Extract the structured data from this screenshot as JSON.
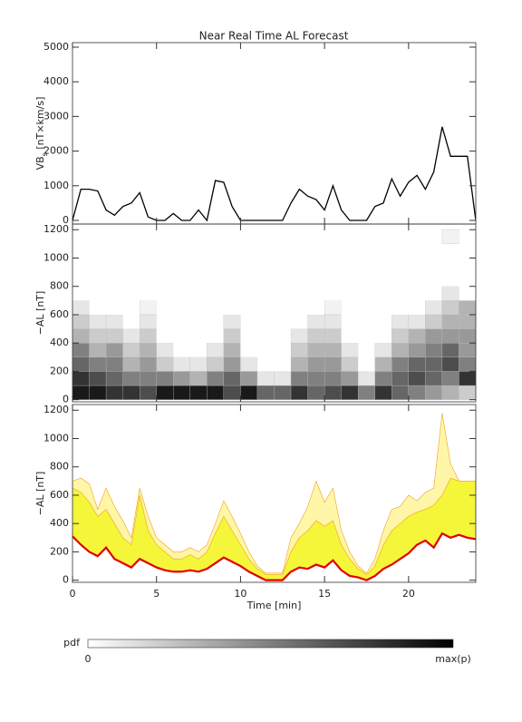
{
  "title": "Near Real Time AL Forecast",
  "chart_data": [
    {
      "type": "line",
      "ylabel": {
        "main": "VB",
        "sub": "s",
        "rest": " [nT×km/s]"
      },
      "x": [
        0,
        0.5,
        1,
        1.5,
        2,
        2.5,
        3,
        3.5,
        4,
        4.5,
        5,
        5.5,
        6,
        6.5,
        7,
        7.5,
        8,
        8.5,
        9,
        9.5,
        10,
        10.5,
        11,
        11.5,
        12,
        12.5,
        13,
        13.5,
        14,
        14.5,
        15,
        15.5,
        16,
        16.5,
        17,
        17.5,
        18,
        18.5,
        19,
        19.5,
        20,
        20.5,
        21,
        21.5,
        22,
        22.5,
        23,
        23.5,
        24
      ],
      "values": [
        0,
        900,
        900,
        850,
        300,
        150,
        400,
        500,
        800,
        100,
        0,
        0,
        200,
        0,
        0,
        300,
        0,
        1150,
        1100,
        400,
        0,
        0,
        0,
        0,
        0,
        0,
        500,
        900,
        700,
        600,
        300,
        1000,
        300,
        0,
        0,
        0,
        400,
        500,
        1200,
        700,
        1100,
        1300,
        900,
        1400,
        2700,
        1850,
        1850,
        1850,
        0
      ],
      "color": "#000000",
      "xlim": [
        0,
        24
      ],
      "ylim": [
        -105,
        5130
      ],
      "yticks": [
        0,
        1000,
        2000,
        3000,
        4000,
        5000
      ],
      "xticks": [
        0,
        5,
        10,
        15,
        20
      ]
    },
    {
      "type": "heatmap",
      "ylabel": "−AL [nT]",
      "x_bins": [
        0,
        1,
        2,
        3,
        4,
        5,
        6,
        7,
        8,
        9,
        10,
        11,
        12,
        13,
        14,
        15,
        16,
        17,
        18,
        19,
        20,
        21,
        22,
        23,
        24
      ],
      "y_bins": [
        0,
        100,
        200,
        300,
        400,
        500,
        600,
        700,
        800,
        900,
        1000,
        1100,
        1200
      ],
      "values": [
        [
          0.9,
          0.8,
          0.6,
          0.5,
          0.3,
          0.2,
          0.1,
          0,
          0,
          0,
          0,
          0
        ],
        [
          0.9,
          0.7,
          0.5,
          0.3,
          0.2,
          0.1,
          0,
          0,
          0,
          0,
          0,
          0
        ],
        [
          0.8,
          0.6,
          0.5,
          0.4,
          0.2,
          0.1,
          0,
          0,
          0,
          0,
          0,
          0
        ],
        [
          0.8,
          0.5,
          0.3,
          0.2,
          0.1,
          0,
          0,
          0,
          0,
          0,
          0,
          0
        ],
        [
          0.7,
          0.5,
          0.4,
          0.3,
          0.2,
          0.1,
          0.05,
          0,
          0,
          0,
          0,
          0
        ],
        [
          0.9,
          0.5,
          0.2,
          0.1,
          0,
          0,
          0,
          0,
          0,
          0,
          0,
          0
        ],
        [
          0.9,
          0.4,
          0.1,
          0,
          0,
          0,
          0,
          0,
          0,
          0,
          0,
          0
        ],
        [
          0.9,
          0.3,
          0.1,
          0,
          0,
          0,
          0,
          0,
          0,
          0,
          0,
          0
        ],
        [
          0.9,
          0.5,
          0.2,
          0.1,
          0,
          0,
          0,
          0,
          0,
          0,
          0,
          0
        ],
        [
          0.7,
          0.6,
          0.4,
          0.3,
          0.2,
          0.1,
          0,
          0,
          0,
          0,
          0,
          0
        ],
        [
          0.9,
          0.4,
          0.1,
          0,
          0,
          0,
          0,
          0,
          0,
          0,
          0,
          0
        ],
        [
          0.6,
          0.1,
          0,
          0,
          0,
          0,
          0,
          0,
          0,
          0,
          0,
          0
        ],
        [
          0.6,
          0.1,
          0,
          0,
          0,
          0,
          0,
          0,
          0,
          0,
          0,
          0
        ],
        [
          0.8,
          0.5,
          0.3,
          0.2,
          0.1,
          0,
          0,
          0,
          0,
          0,
          0,
          0
        ],
        [
          0.6,
          0.5,
          0.4,
          0.3,
          0.2,
          0.1,
          0,
          0,
          0,
          0,
          0,
          0
        ],
        [
          0.7,
          0.5,
          0.4,
          0.3,
          0.2,
          0.1,
          0.05,
          0,
          0,
          0,
          0,
          0
        ],
        [
          0.8,
          0.4,
          0.2,
          0.1,
          0,
          0,
          0,
          0,
          0,
          0,
          0,
          0
        ],
        [
          0.5,
          0.1,
          0,
          0,
          0,
          0,
          0,
          0,
          0,
          0,
          0,
          0
        ],
        [
          0.8,
          0.5,
          0.3,
          0.1,
          0,
          0,
          0,
          0,
          0,
          0,
          0,
          0
        ],
        [
          0.6,
          0.6,
          0.5,
          0.3,
          0.2,
          0.1,
          0,
          0,
          0,
          0,
          0,
          0
        ],
        [
          0.5,
          0.7,
          0.6,
          0.4,
          0.3,
          0.1,
          0,
          0,
          0,
          0,
          0,
          0
        ],
        [
          0.4,
          0.6,
          0.6,
          0.5,
          0.4,
          0.2,
          0.1,
          0,
          0,
          0,
          0,
          0
        ],
        [
          0.3,
          0.5,
          0.7,
          0.6,
          0.4,
          0.3,
          0.2,
          0.1,
          0,
          0,
          0,
          0.05
        ],
        [
          0.2,
          0.8,
          0.5,
          0.4,
          0.4,
          0.3,
          0.3,
          0,
          0,
          0,
          0,
          0
        ]
      ],
      "xlim": [
        0,
        24
      ],
      "ylim": [
        -15,
        1240
      ],
      "yticks": [
        0,
        200,
        400,
        600,
        800,
        1000,
        1200
      ],
      "xticks": [
        0,
        5,
        10,
        15,
        20
      ],
      "colorbar": {
        "label": "pdf",
        "min_label": "0",
        "max_label": "max(p)"
      }
    },
    {
      "type": "band",
      "ylabel": "−AL [nT]",
      "xlabel": "Time [min]",
      "x": [
        0,
        0.5,
        1,
        1.5,
        2,
        2.5,
        3,
        3.5,
        4,
        4.5,
        5,
        5.5,
        6,
        6.5,
        7,
        7.5,
        8,
        8.5,
        9,
        9.5,
        10,
        10.5,
        11,
        11.5,
        12,
        12.5,
        13,
        13.5,
        14,
        14.5,
        15,
        15.5,
        16,
        16.5,
        17,
        17.5,
        18,
        18.5,
        19,
        19.5,
        20,
        20.5,
        21,
        21.5,
        22,
        22.5,
        23,
        23.5,
        24
      ],
      "series": [
        {
          "color": "#fff6a8",
          "values": [
            700,
            720,
            680,
            500,
            650,
            520,
            420,
            300,
            650,
            450,
            300,
            250,
            200,
            200,
            230,
            200,
            250,
            400,
            560,
            450,
            330,
            200,
            100,
            50,
            50,
            50,
            300,
            400,
            520,
            700,
            550,
            650,
            350,
            200,
            100,
            50,
            150,
            350,
            500,
            520,
            600,
            560,
            620,
            650,
            1180,
            820,
            700,
            700,
            700
          ]
        },
        {
          "color": "#f5f53a",
          "values": [
            650,
            620,
            550,
            450,
            500,
            400,
            300,
            250,
            600,
            350,
            250,
            200,
            150,
            150,
            180,
            150,
            200,
            330,
            450,
            350,
            250,
            150,
            80,
            40,
            40,
            40,
            200,
            300,
            350,
            420,
            380,
            420,
            250,
            150,
            80,
            40,
            100,
            250,
            350,
            400,
            450,
            480,
            500,
            530,
            600,
            720,
            700,
            700,
            700
          ]
        },
        {
          "color": "#e00000",
          "values": [
            310,
            250,
            200,
            170,
            230,
            150,
            120,
            90,
            150,
            120,
            90,
            70,
            60,
            60,
            70,
            60,
            80,
            120,
            160,
            130,
            100,
            60,
            30,
            0,
            0,
            0,
            60,
            90,
            80,
            110,
            90,
            140,
            70,
            30,
            20,
            0,
            30,
            80,
            110,
            150,
            190,
            250,
            280,
            230,
            330,
            300,
            320,
            300,
            290
          ]
        }
      ],
      "xlim": [
        0,
        24
      ],
      "ylim": [
        -15,
        1240
      ],
      "yticks": [
        0,
        200,
        400,
        600,
        800,
        1000,
        1200
      ],
      "xticks": [
        0,
        5,
        10,
        15,
        20
      ]
    }
  ]
}
